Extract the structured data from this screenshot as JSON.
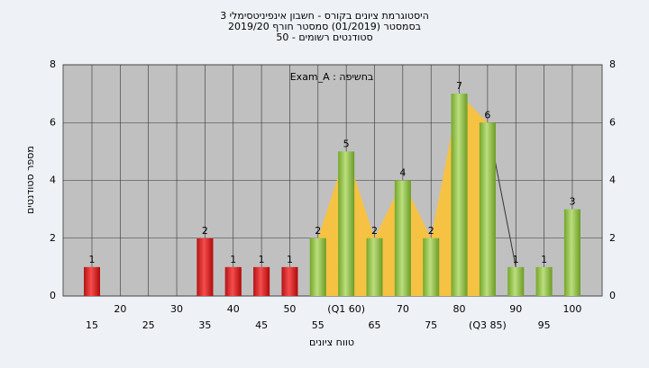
{
  "chart_data": {
    "type": "bar",
    "title": "היסטוגרמת ציונים בקורס - חשבון אינפיניטסימלי 3",
    "subtitle": "בסמסטר (01/2019) סמסטר חורף 2019/20",
    "subtitle2": "סטודנטים רשומים - 50",
    "annotation": "בחשיפה : Exam_A",
    "x_label": "טווח ציונים",
    "y_label": "מספר סטודנטים",
    "categories": [
      "15",
      "20",
      "25",
      "30",
      "35",
      "40",
      "45",
      "50",
      "55",
      "(Q1 60)",
      "65",
      "70",
      "75",
      "80",
      "(Q3 85)",
      "90",
      "95",
      "100"
    ],
    "values": [
      1,
      0,
      0,
      0,
      2,
      1,
      1,
      1,
      2,
      5,
      2,
      4,
      2,
      7,
      6,
      1,
      1,
      3
    ],
    "colors": [
      "#e02020",
      "#e02020",
      "#e02020",
      "#e02020",
      "#e02020",
      "#e02020",
      "#e02020",
      "#e02020",
      "#8dc63f",
      "#8dc63f",
      "#8dc63f",
      "#8dc63f",
      "#8dc63f",
      "#8dc63f",
      "#8dc63f",
      "#8dc63f",
      "#8dc63f",
      "#8dc63f"
    ],
    "area_color": "#f6c244",
    "ylim": [
      0,
      8
    ],
    "yticks": [
      0,
      2,
      4,
      6,
      8
    ],
    "grid": true
  }
}
